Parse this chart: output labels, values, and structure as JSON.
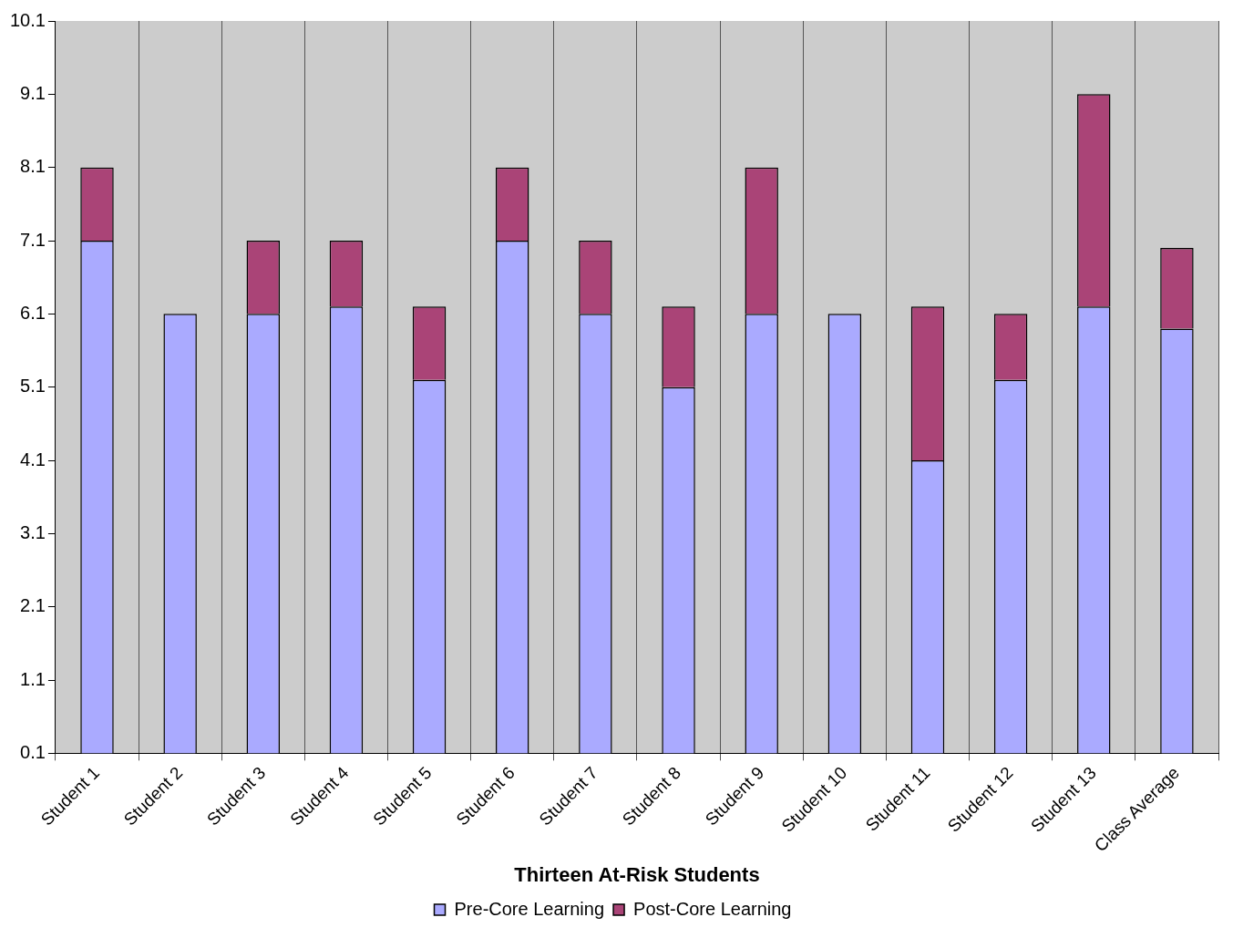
{
  "chart_data": {
    "type": "bar",
    "stacked": true,
    "xlabel": "Thirteen At-Risk Students",
    "categories": [
      "Student 1",
      "Student 2",
      "Student 3",
      "Student 4",
      "Student 5",
      "Student 6",
      "Student 7",
      "Student 8",
      "Student 9",
      "Student 10",
      "Student 11",
      "Student 12",
      "Student 13",
      "Class Average"
    ],
    "series": [
      {
        "name": "Pre-Core Learning",
        "color": "#aaaaff",
        "values": [
          7.1,
          6.1,
          6.1,
          6.2,
          5.2,
          7.1,
          6.1,
          5.1,
          6.1,
          6.1,
          4.1,
          5.2,
          6.2,
          5.9
        ]
      },
      {
        "name": "Post-Core Learning",
        "color": "#aa4477",
        "values": [
          1.0,
          null,
          1.0,
          0.9,
          1.0,
          1.0,
          1.0,
          1.1,
          2.0,
          null,
          2.1,
          0.9,
          2.9,
          1.1
        ]
      }
    ],
    "ylim": [
      0.1,
      10.1
    ],
    "yticks": [
      0.1,
      1.1,
      2.1,
      3.1,
      4.1,
      5.1,
      6.1,
      7.1,
      8.1,
      9.1,
      10.1
    ],
    "grid": "x",
    "legend": "bottom"
  }
}
